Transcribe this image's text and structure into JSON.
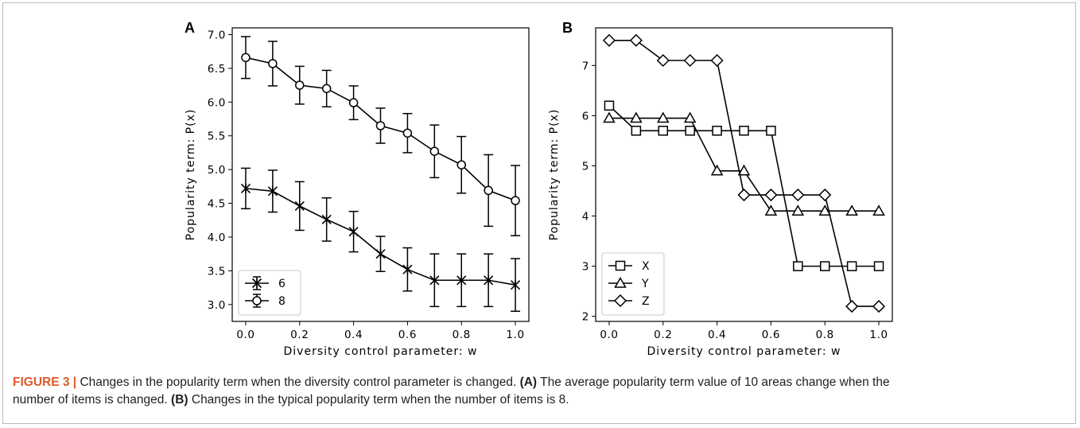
{
  "caption": {
    "fig_label": "FIGURE 3 |",
    "line1_text": " Changes in the popularity term when the diversity control parameter is changed. ",
    "ref_a": "(A)",
    "line1_after_a": " The average popularity term value of 10 areas change when the",
    "line2_text": "number of items is changed. ",
    "ref_b": "(B)",
    "line2_after_b": " Changes in the typical popularity term when the number of items is 8."
  },
  "chart_data": [
    {
      "panel": "A",
      "type": "line",
      "xlabel": "Diversity control parameter: w",
      "ylabel": "Popularity term: P(x)",
      "xlim": [
        -0.05,
        1.05
      ],
      "ylim": [
        2.75,
        7.1
      ],
      "xticks": [
        0.0,
        0.2,
        0.4,
        0.6,
        0.8,
        1.0
      ],
      "yticks": [
        3.0,
        3.5,
        4.0,
        4.5,
        5.0,
        5.5,
        6.0,
        6.5,
        7.0
      ],
      "x": [
        0.0,
        0.1,
        0.2,
        0.3,
        0.4,
        0.5,
        0.6,
        0.7,
        0.8,
        0.9,
        1.0
      ],
      "series": [
        {
          "name": "6",
          "marker": "x-star",
          "values": [
            4.72,
            4.68,
            4.46,
            4.26,
            4.08,
            3.75,
            3.52,
            3.36,
            3.36,
            3.36,
            3.29
          ],
          "errors": [
            0.3,
            0.31,
            0.36,
            0.32,
            0.3,
            0.26,
            0.32,
            0.39,
            0.39,
            0.39,
            0.39
          ]
        },
        {
          "name": "8",
          "marker": "circle",
          "values": [
            6.66,
            6.57,
            6.25,
            6.2,
            5.99,
            5.65,
            5.54,
            5.27,
            5.07,
            4.69,
            4.54
          ],
          "errors": [
            0.31,
            0.33,
            0.28,
            0.27,
            0.25,
            0.26,
            0.29,
            0.39,
            0.42,
            0.53,
            0.52
          ]
        }
      ],
      "legend": "lower-left"
    },
    {
      "panel": "B",
      "type": "line",
      "xlabel": "Diversity control parameter: w",
      "ylabel": "Popularity term: P(x)",
      "xlim": [
        -0.05,
        1.05
      ],
      "ylim": [
        1.9,
        7.75
      ],
      "xticks": [
        0.0,
        0.2,
        0.4,
        0.6,
        0.8,
        1.0
      ],
      "yticks": [
        2,
        3,
        4,
        5,
        6,
        7
      ],
      "x": [
        0.0,
        0.1,
        0.2,
        0.3,
        0.4,
        0.5,
        0.6,
        0.7,
        0.8,
        0.9,
        1.0
      ],
      "series": [
        {
          "name": "X",
          "marker": "square",
          "values": [
            6.2,
            5.7,
            5.7,
            5.7,
            5.7,
            5.7,
            5.7,
            3.0,
            3.0,
            3.0,
            3.0
          ]
        },
        {
          "name": "Y",
          "marker": "triangle",
          "values": [
            5.95,
            5.95,
            5.95,
            5.95,
            4.9,
            4.9,
            4.1,
            4.1,
            4.1,
            4.1,
            4.1
          ]
        },
        {
          "name": "Z",
          "marker": "diamond",
          "values": [
            7.5,
            7.5,
            7.1,
            7.1,
            7.1,
            4.42,
            4.42,
            4.42,
            4.42,
            2.2,
            2.2
          ]
        }
      ],
      "legend": "lower-left"
    }
  ]
}
